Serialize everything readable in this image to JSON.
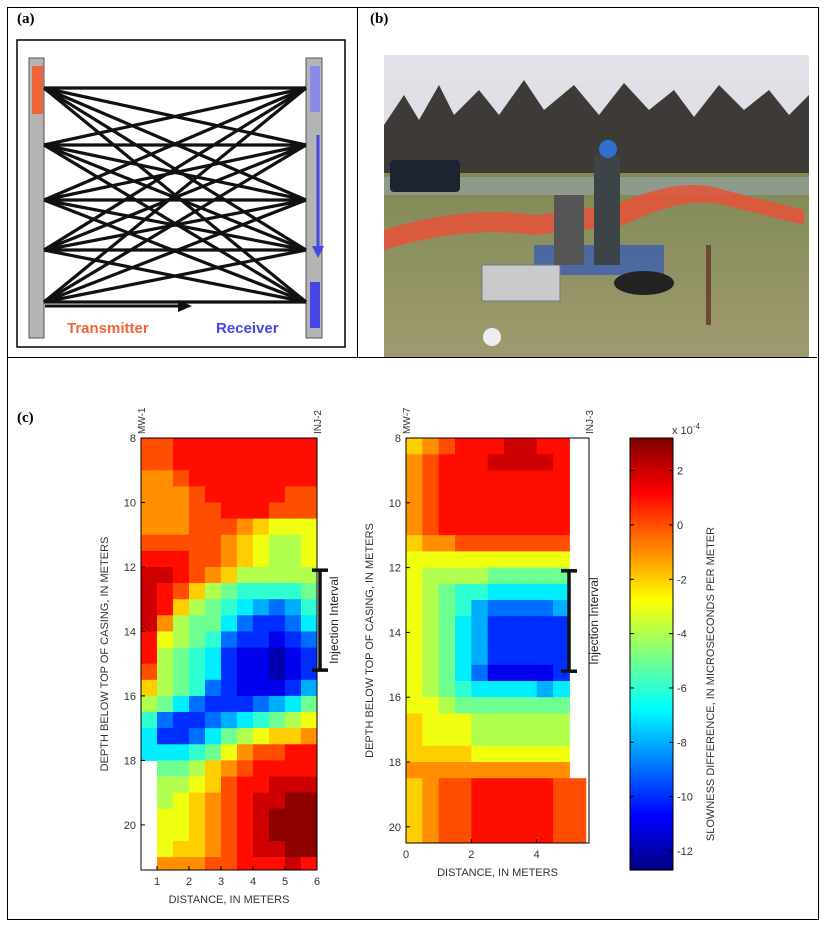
{
  "panels": {
    "a": {
      "label": "(a)",
      "transmitter_label": "Transmitter",
      "receiver_label": "Receiver",
      "colors": {
        "transmitter": "#f0643c",
        "receiver": "#4646e6",
        "casing": "#b4b4b4",
        "rays": "#111111"
      }
    },
    "b": {
      "label": "(b)"
    },
    "c": {
      "label": "(c)"
    }
  },
  "chart_data": [
    {
      "type": "heatmap",
      "top_left_label": "MW-1",
      "top_right_label": "INJ-2",
      "xlabel": "DISTANCE, IN METERS",
      "ylabel": "DEPTH BELOW TOP OF CASING, IN METERS",
      "xlim": [
        0.5,
        6
      ],
      "ylim": [
        8,
        21.4
      ],
      "y_reversed": true,
      "xticks": [
        1,
        2,
        3,
        4,
        5,
        6
      ],
      "yticks": [
        8,
        10,
        12,
        14,
        16,
        18,
        20
      ],
      "cell_x_start": 0.5,
      "cell_width": 0.5,
      "cell_y_start": 8,
      "cell_height": 0.5,
      "annotation": {
        "text": "Injection Interval",
        "depth_range": [
          12.1,
          15.2
        ]
      },
      "values": [
        [
          0,
          0,
          1,
          1,
          1,
          1,
          1,
          1,
          1,
          1,
          1
        ],
        [
          0,
          0,
          1,
          1,
          1,
          1,
          1,
          1,
          1,
          1,
          1
        ],
        [
          -1,
          -1,
          0,
          1,
          1,
          1,
          1,
          1,
          1,
          1,
          1
        ],
        [
          -1,
          -1,
          -1,
          0,
          1,
          1,
          1,
          1,
          1,
          0,
          0
        ],
        [
          -1,
          -1,
          -1,
          0,
          0,
          1,
          1,
          1,
          0,
          0,
          0
        ],
        [
          -1,
          -1,
          -1,
          0,
          0,
          0,
          -1,
          -2,
          -3,
          -3,
          -3
        ],
        [
          0,
          0,
          0,
          0,
          0,
          -1,
          -2,
          -3,
          -4,
          -4,
          -3
        ],
        [
          1,
          1,
          1,
          0,
          0,
          -1,
          -2,
          -3,
          -4,
          -4,
          -3
        ],
        [
          2,
          2,
          1,
          0,
          -1,
          -2,
          -4,
          -4,
          -4,
          -4,
          -4
        ],
        [
          2,
          1,
          0,
          -2,
          -4,
          -5,
          -6,
          -6,
          -6,
          -6,
          -5
        ],
        [
          2,
          1,
          -2,
          -4,
          -5,
          -6,
          -7,
          -8,
          -9,
          -8,
          -6
        ],
        [
          2,
          -1,
          -4,
          -5,
          -5,
          -7,
          -9,
          -10,
          -10,
          -9,
          -7
        ],
        [
          1,
          -3,
          -4,
          -5,
          -6,
          -9,
          -10,
          -10,
          -11,
          -10,
          -9
        ],
        [
          1,
          -4,
          -5,
          -6,
          -7,
          -10,
          -11,
          -11,
          -12,
          -11,
          -10
        ],
        [
          0,
          -4,
          -5,
          -6,
          -7,
          -10,
          -11,
          -11,
          -12,
          -11,
          -10
        ],
        [
          -2,
          -4,
          -5,
          -6,
          -9,
          -10,
          -11,
          -11,
          -11,
          -10,
          -8
        ],
        [
          -4,
          -5,
          -7,
          -9,
          -10,
          -10,
          -10,
          -9,
          -8,
          -7,
          -5
        ],
        [
          -6,
          -9,
          -10,
          -10,
          -9,
          -8,
          -7,
          -6,
          -5,
          -4,
          -3
        ],
        [
          -7,
          -10,
          -10,
          -9,
          -7,
          -5,
          -4,
          -3,
          -2,
          -2,
          -1
        ],
        [
          -7,
          -7,
          -7,
          -6,
          -5,
          -3,
          -1,
          0,
          0,
          1,
          1
        ],
        [
          null,
          -5,
          -5,
          -4,
          -2,
          -1,
          0,
          1,
          1,
          1,
          1
        ],
        [
          null,
          -4,
          -4,
          -3,
          -2,
          0,
          1,
          1,
          2,
          2,
          2
        ],
        [
          null,
          -4,
          -3,
          -2,
          -1,
          0,
          1,
          2,
          2,
          3,
          3
        ],
        [
          null,
          -3,
          -3,
          -2,
          -1,
          0,
          1,
          2,
          3,
          3,
          3
        ],
        [
          null,
          -3,
          -3,
          -2,
          -1,
          0,
          1,
          2,
          3,
          3,
          3
        ],
        [
          null,
          -3,
          -2,
          -2,
          -1,
          0,
          1,
          2,
          2,
          3,
          3
        ],
        [
          null,
          -1,
          -1,
          -1,
          0,
          0,
          1,
          1,
          1,
          2,
          1
        ]
      ]
    },
    {
      "type": "heatmap",
      "top_left_label": "MW-7",
      "top_right_label": "INJ-3",
      "xlabel": "DISTANCE, IN METERS",
      "ylabel": "DEPTH BELOW TOP OF CASING, IN METERS",
      "xlim": [
        0,
        5.6
      ],
      "ylim": [
        8,
        20.5
      ],
      "y_reversed": true,
      "xticks": [
        0,
        2,
        4
      ],
      "yticks": [
        8,
        10,
        12,
        14,
        16,
        18,
        20
      ],
      "cell_x_start": 0,
      "cell_width": 0.5,
      "cell_y_start": 8,
      "cell_height": 0.5,
      "annotation": {
        "text": "Injection Interval",
        "depth_range": [
          12.1,
          15.2
        ]
      },
      "values": [
        [
          -2,
          -1,
          0,
          1,
          1,
          1,
          2,
          2,
          1,
          1,
          null
        ],
        [
          -1,
          0,
          1,
          1,
          1,
          2,
          2,
          2,
          2,
          1,
          null
        ],
        [
          -1,
          0,
          1,
          1,
          1,
          1,
          1,
          1,
          1,
          1,
          null
        ],
        [
          -1,
          0,
          1,
          1,
          1,
          1,
          1,
          1,
          1,
          1,
          null
        ],
        [
          -1,
          0,
          1,
          1,
          1,
          1,
          1,
          1,
          1,
          1,
          null
        ],
        [
          -1,
          0,
          1,
          1,
          1,
          1,
          1,
          1,
          1,
          1,
          null
        ],
        [
          -2,
          -1,
          -1,
          0,
          0,
          0,
          0,
          0,
          0,
          0,
          null
        ],
        [
          -3,
          -3,
          -3,
          -3,
          -3,
          -3,
          -3,
          -3,
          -3,
          -3,
          null
        ],
        [
          -3,
          -4,
          -4,
          -4,
          -4,
          -5,
          -5,
          -5,
          -5,
          -5,
          null
        ],
        [
          -3,
          -4,
          -5,
          -6,
          -6,
          -7,
          -7,
          -7,
          -7,
          -7,
          null
        ],
        [
          -3,
          -4,
          -5,
          -6,
          -8,
          -9,
          -9,
          -9,
          -9,
          -8,
          null
        ],
        [
          -3,
          -4,
          -5,
          -7,
          -8,
          -10,
          -10,
          -10,
          -10,
          -10,
          null
        ],
        [
          -3,
          -4,
          -5,
          -7,
          -8,
          -10,
          -10,
          -10,
          -10,
          -10,
          null
        ],
        [
          -3,
          -4,
          -5,
          -7,
          -8,
          -10,
          -10,
          -10,
          -10,
          -10,
          null
        ],
        [
          -3,
          -4,
          -5,
          -7,
          -9,
          -11,
          -11,
          -11,
          -11,
          -10,
          null
        ],
        [
          -3,
          -4,
          -5,
          -6,
          -7,
          -7,
          -7,
          -7,
          -8,
          -7,
          null
        ],
        [
          -3,
          -3,
          -4,
          -5,
          -5,
          -5,
          -5,
          -5,
          -5,
          -5,
          null
        ],
        [
          -2,
          -3,
          -3,
          -3,
          -4,
          -4,
          -4,
          -4,
          -4,
          -4,
          null
        ],
        [
          -2,
          -3,
          -3,
          -3,
          -4,
          -4,
          -4,
          -4,
          -4,
          -4,
          null
        ],
        [
          -2,
          -2,
          -2,
          -2,
          -3,
          -3,
          -3,
          -3,
          -3,
          -3,
          null
        ],
        [
          -1,
          -1,
          -1,
          -1,
          -1,
          -1,
          -1,
          -1,
          -1,
          -1,
          null
        ],
        [
          -2,
          -1,
          0,
          0,
          1,
          1,
          1,
          1,
          1,
          0,
          0
        ],
        [
          -2,
          -1,
          0,
          0,
          1,
          1,
          1,
          1,
          1,
          0,
          0
        ],
        [
          -2,
          -1,
          0,
          0,
          1,
          1,
          1,
          1,
          1,
          0,
          0
        ],
        [
          -2,
          -1,
          0,
          0,
          1,
          1,
          1,
          1,
          1,
          0,
          0
        ]
      ]
    },
    {
      "type": "colorbar",
      "colormap": "jet",
      "range": [
        -12.7,
        3.2
      ],
      "ticks": [
        2,
        0,
        -2,
        -4,
        -6,
        -8,
        -10,
        -12
      ],
      "exponent_label": "x 10",
      "exponent": "-4",
      "label": "SLOWNESS DIFFERENCE, IN MICROSECONDS PER METER"
    }
  ]
}
